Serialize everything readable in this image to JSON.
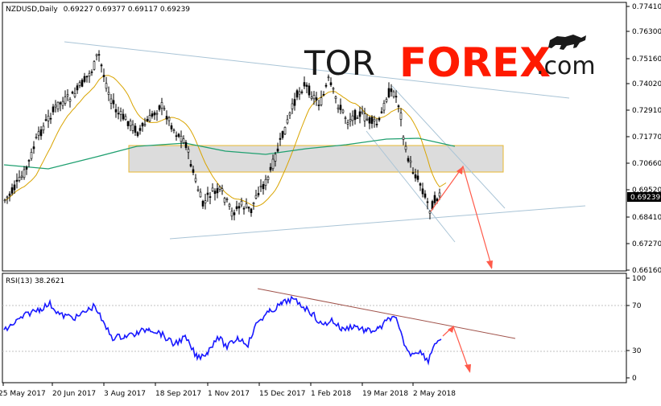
{
  "chart": {
    "title": "NZDUSD,Daily",
    "ohlc": "0.69227 0.69377 0.69117 0.69239",
    "current_price": "0.69239",
    "watermark": {
      "left": "TOR",
      "right": "FOREX",
      "suffix": ".com"
    },
    "rsi_label": "RSI(13) 38.2621",
    "price_ticks": [
      "0.77410",
      "0.76300",
      "0.75160",
      "0.74020",
      "0.72910",
      "0.71770",
      "0.70660",
      "0.69520",
      "0.68410",
      "0.67270",
      "0.66160"
    ],
    "rsi_ticks": [
      "100",
      "70",
      "30",
      "0"
    ],
    "date_labels": [
      "25 May 2017",
      "20 Jun 2017",
      "3 Aug 2017",
      "18 Sep 2017",
      "1 Nov 2017",
      "15 Dec 2017",
      "1 Feb 2018",
      "19 Mar 2018",
      "2 May 2018"
    ]
  },
  "colors": {
    "candle": "#000000",
    "ma_fast": "#d9a400",
    "ma_slow": "#20a070",
    "rsi": "#1818ff",
    "trend_lines": "#a9c4d6",
    "rsi_trend": "#a0524a",
    "forecast": "#ff5a4a",
    "zone_fill": "#d8d8d8",
    "zone_border": "#e8b830",
    "price_box": "#000000",
    "watermark_dark": "#1a1a1a",
    "watermark_red": "#ff1a00"
  }
}
